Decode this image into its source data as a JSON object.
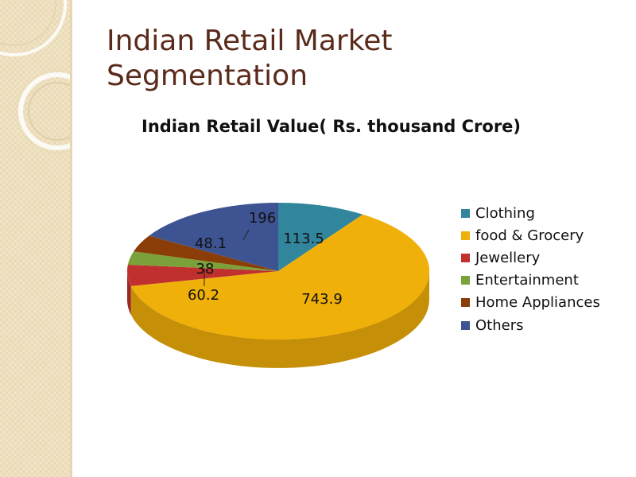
{
  "slide": {
    "title_lines": [
      "Indian Retail Market",
      "Segmentation"
    ]
  },
  "chart_data": {
    "type": "pie",
    "title": "Indian Retail Value( Rs. thousand Crore)",
    "categories": [
      "Clothing",
      "food & Grocery",
      "Jewellery",
      "Entertainment",
      "Home Appliances",
      "Others"
    ],
    "values": [
      113.5,
      743.9,
      60.2,
      38,
      48.1,
      196
    ],
    "data_labels": [
      "113.5",
      "743.9",
      "60.2",
      "38",
      "48.1",
      "196"
    ],
    "colors": [
      "#31859c",
      "#f0b00a",
      "#c0302e",
      "#7ba23a",
      "#8b3d07",
      "#3e5391"
    ],
    "legend_position": "right",
    "style": "3D"
  }
}
